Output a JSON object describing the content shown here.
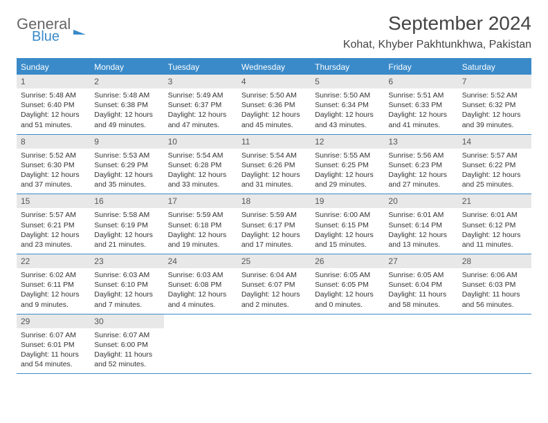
{
  "logo": {
    "line1": "General",
    "line2": "Blue"
  },
  "title": "September 2024",
  "location": "Kohat, Khyber Pakhtunkhwa, Pakistan",
  "colors": {
    "accent": "#3a8ac9",
    "header_text": "#ffffff",
    "date_bar_bg": "#e8e8e8",
    "text": "#333333"
  },
  "day_headers": [
    "Sunday",
    "Monday",
    "Tuesday",
    "Wednesday",
    "Thursday",
    "Friday",
    "Saturday"
  ],
  "weeks": [
    [
      {
        "date": "1",
        "sunrise": "Sunrise: 5:48 AM",
        "sunset": "Sunset: 6:40 PM",
        "daylight1": "Daylight: 12 hours",
        "daylight2": "and 51 minutes."
      },
      {
        "date": "2",
        "sunrise": "Sunrise: 5:48 AM",
        "sunset": "Sunset: 6:38 PM",
        "daylight1": "Daylight: 12 hours",
        "daylight2": "and 49 minutes."
      },
      {
        "date": "3",
        "sunrise": "Sunrise: 5:49 AM",
        "sunset": "Sunset: 6:37 PM",
        "daylight1": "Daylight: 12 hours",
        "daylight2": "and 47 minutes."
      },
      {
        "date": "4",
        "sunrise": "Sunrise: 5:50 AM",
        "sunset": "Sunset: 6:36 PM",
        "daylight1": "Daylight: 12 hours",
        "daylight2": "and 45 minutes."
      },
      {
        "date": "5",
        "sunrise": "Sunrise: 5:50 AM",
        "sunset": "Sunset: 6:34 PM",
        "daylight1": "Daylight: 12 hours",
        "daylight2": "and 43 minutes."
      },
      {
        "date": "6",
        "sunrise": "Sunrise: 5:51 AM",
        "sunset": "Sunset: 6:33 PM",
        "daylight1": "Daylight: 12 hours",
        "daylight2": "and 41 minutes."
      },
      {
        "date": "7",
        "sunrise": "Sunrise: 5:52 AM",
        "sunset": "Sunset: 6:32 PM",
        "daylight1": "Daylight: 12 hours",
        "daylight2": "and 39 minutes."
      }
    ],
    [
      {
        "date": "8",
        "sunrise": "Sunrise: 5:52 AM",
        "sunset": "Sunset: 6:30 PM",
        "daylight1": "Daylight: 12 hours",
        "daylight2": "and 37 minutes."
      },
      {
        "date": "9",
        "sunrise": "Sunrise: 5:53 AM",
        "sunset": "Sunset: 6:29 PM",
        "daylight1": "Daylight: 12 hours",
        "daylight2": "and 35 minutes."
      },
      {
        "date": "10",
        "sunrise": "Sunrise: 5:54 AM",
        "sunset": "Sunset: 6:28 PM",
        "daylight1": "Daylight: 12 hours",
        "daylight2": "and 33 minutes."
      },
      {
        "date": "11",
        "sunrise": "Sunrise: 5:54 AM",
        "sunset": "Sunset: 6:26 PM",
        "daylight1": "Daylight: 12 hours",
        "daylight2": "and 31 minutes."
      },
      {
        "date": "12",
        "sunrise": "Sunrise: 5:55 AM",
        "sunset": "Sunset: 6:25 PM",
        "daylight1": "Daylight: 12 hours",
        "daylight2": "and 29 minutes."
      },
      {
        "date": "13",
        "sunrise": "Sunrise: 5:56 AM",
        "sunset": "Sunset: 6:23 PM",
        "daylight1": "Daylight: 12 hours",
        "daylight2": "and 27 minutes."
      },
      {
        "date": "14",
        "sunrise": "Sunrise: 5:57 AM",
        "sunset": "Sunset: 6:22 PM",
        "daylight1": "Daylight: 12 hours",
        "daylight2": "and 25 minutes."
      }
    ],
    [
      {
        "date": "15",
        "sunrise": "Sunrise: 5:57 AM",
        "sunset": "Sunset: 6:21 PM",
        "daylight1": "Daylight: 12 hours",
        "daylight2": "and 23 minutes."
      },
      {
        "date": "16",
        "sunrise": "Sunrise: 5:58 AM",
        "sunset": "Sunset: 6:19 PM",
        "daylight1": "Daylight: 12 hours",
        "daylight2": "and 21 minutes."
      },
      {
        "date": "17",
        "sunrise": "Sunrise: 5:59 AM",
        "sunset": "Sunset: 6:18 PM",
        "daylight1": "Daylight: 12 hours",
        "daylight2": "and 19 minutes."
      },
      {
        "date": "18",
        "sunrise": "Sunrise: 5:59 AM",
        "sunset": "Sunset: 6:17 PM",
        "daylight1": "Daylight: 12 hours",
        "daylight2": "and 17 minutes."
      },
      {
        "date": "19",
        "sunrise": "Sunrise: 6:00 AM",
        "sunset": "Sunset: 6:15 PM",
        "daylight1": "Daylight: 12 hours",
        "daylight2": "and 15 minutes."
      },
      {
        "date": "20",
        "sunrise": "Sunrise: 6:01 AM",
        "sunset": "Sunset: 6:14 PM",
        "daylight1": "Daylight: 12 hours",
        "daylight2": "and 13 minutes."
      },
      {
        "date": "21",
        "sunrise": "Sunrise: 6:01 AM",
        "sunset": "Sunset: 6:12 PM",
        "daylight1": "Daylight: 12 hours",
        "daylight2": "and 11 minutes."
      }
    ],
    [
      {
        "date": "22",
        "sunrise": "Sunrise: 6:02 AM",
        "sunset": "Sunset: 6:11 PM",
        "daylight1": "Daylight: 12 hours",
        "daylight2": "and 9 minutes."
      },
      {
        "date": "23",
        "sunrise": "Sunrise: 6:03 AM",
        "sunset": "Sunset: 6:10 PM",
        "daylight1": "Daylight: 12 hours",
        "daylight2": "and 7 minutes."
      },
      {
        "date": "24",
        "sunrise": "Sunrise: 6:03 AM",
        "sunset": "Sunset: 6:08 PM",
        "daylight1": "Daylight: 12 hours",
        "daylight2": "and 4 minutes."
      },
      {
        "date": "25",
        "sunrise": "Sunrise: 6:04 AM",
        "sunset": "Sunset: 6:07 PM",
        "daylight1": "Daylight: 12 hours",
        "daylight2": "and 2 minutes."
      },
      {
        "date": "26",
        "sunrise": "Sunrise: 6:05 AM",
        "sunset": "Sunset: 6:05 PM",
        "daylight1": "Daylight: 12 hours",
        "daylight2": "and 0 minutes."
      },
      {
        "date": "27",
        "sunrise": "Sunrise: 6:05 AM",
        "sunset": "Sunset: 6:04 PM",
        "daylight1": "Daylight: 11 hours",
        "daylight2": "and 58 minutes."
      },
      {
        "date": "28",
        "sunrise": "Sunrise: 6:06 AM",
        "sunset": "Sunset: 6:03 PM",
        "daylight1": "Daylight: 11 hours",
        "daylight2": "and 56 minutes."
      }
    ],
    [
      {
        "date": "29",
        "sunrise": "Sunrise: 6:07 AM",
        "sunset": "Sunset: 6:01 PM",
        "daylight1": "Daylight: 11 hours",
        "daylight2": "and 54 minutes."
      },
      {
        "date": "30",
        "sunrise": "Sunrise: 6:07 AM",
        "sunset": "Sunset: 6:00 PM",
        "daylight1": "Daylight: 11 hours",
        "daylight2": "and 52 minutes."
      },
      null,
      null,
      null,
      null,
      null
    ]
  ]
}
